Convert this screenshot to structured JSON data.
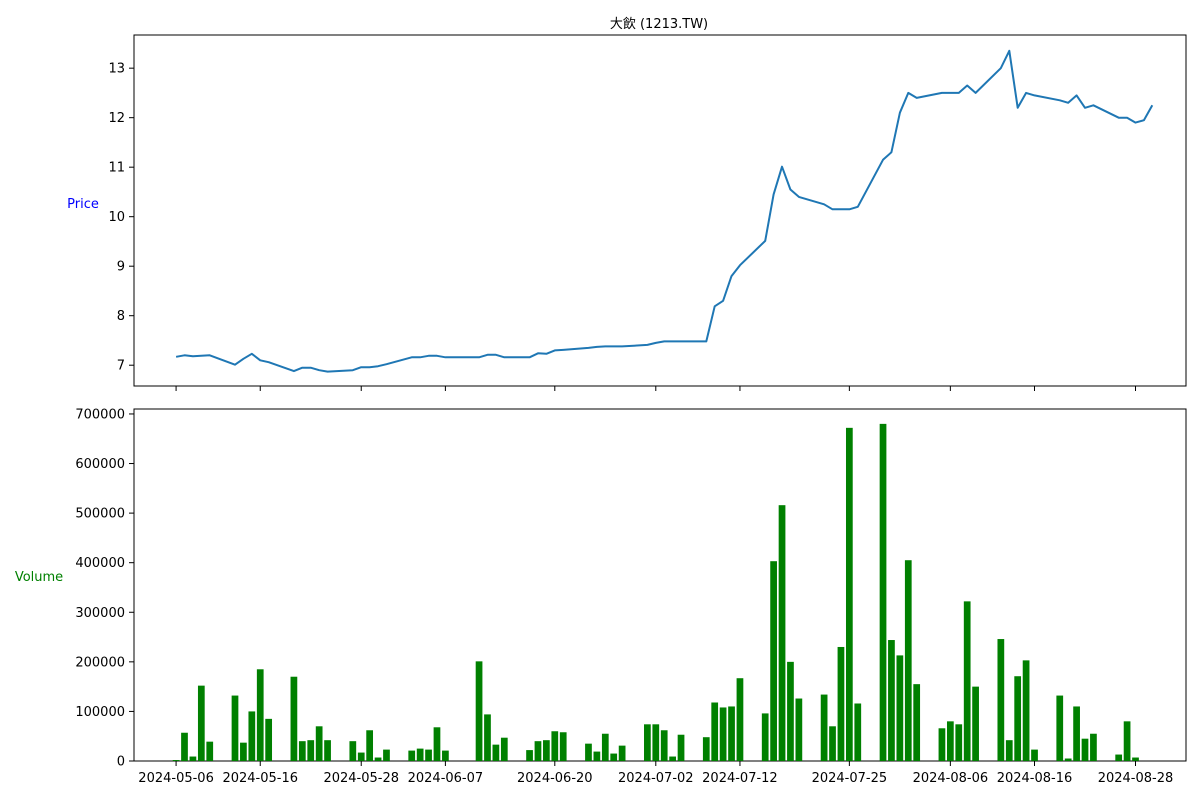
{
  "figure": {
    "title": "大飲 (1213.TW)"
  },
  "chart_data": [
    {
      "type": "line",
      "title": "大飲 (1213.TW)",
      "xlabel": "",
      "ylabel": "Price",
      "ylabel_color": "#0000ff",
      "line_color": "#1f77b4",
      "ylim": [
        6.58,
        13.67
      ],
      "yticks": [
        7,
        8,
        9,
        10,
        11,
        12,
        13
      ],
      "xlim": [
        "2024-05-01",
        "2024-09-03"
      ],
      "grid": false,
      "x": [
        "2024-05-06",
        "2024-05-07",
        "2024-05-08",
        "2024-05-09",
        "2024-05-10",
        "2024-05-13",
        "2024-05-14",
        "2024-05-15",
        "2024-05-16",
        "2024-05-17",
        "2024-05-20",
        "2024-05-21",
        "2024-05-22",
        "2024-05-23",
        "2024-05-24",
        "2024-05-27",
        "2024-05-28",
        "2024-05-29",
        "2024-05-30",
        "2024-05-31",
        "2024-06-03",
        "2024-06-04",
        "2024-06-05",
        "2024-06-06",
        "2024-06-07",
        "2024-06-11",
        "2024-06-12",
        "2024-06-13",
        "2024-06-14",
        "2024-06-17",
        "2024-06-18",
        "2024-06-19",
        "2024-06-20",
        "2024-06-21",
        "2024-06-24",
        "2024-06-25",
        "2024-06-26",
        "2024-06-27",
        "2024-06-28",
        "2024-07-01",
        "2024-07-02",
        "2024-07-03",
        "2024-07-04",
        "2024-07-05",
        "2024-07-08",
        "2024-07-09",
        "2024-07-10",
        "2024-07-11",
        "2024-07-12",
        "2024-07-15",
        "2024-07-16",
        "2024-07-17",
        "2024-07-18",
        "2024-07-19",
        "2024-07-22",
        "2024-07-23",
        "2024-07-24",
        "2024-07-25",
        "2024-07-26",
        "2024-07-29",
        "2024-07-30",
        "2024-07-31",
        "2024-08-01",
        "2024-08-02",
        "2024-08-05",
        "2024-08-06",
        "2024-08-07",
        "2024-08-08",
        "2024-08-09",
        "2024-08-12",
        "2024-08-13",
        "2024-08-14",
        "2024-08-15",
        "2024-08-16",
        "2024-08-19",
        "2024-08-20",
        "2024-08-21",
        "2024-08-22",
        "2024-08-23",
        "2024-08-26",
        "2024-08-27",
        "2024-08-28",
        "2024-08-29",
        "2024-08-30"
      ],
      "values": [
        7.17,
        7.2,
        7.18,
        7.19,
        7.2,
        7.01,
        7.13,
        7.23,
        7.1,
        7.06,
        6.88,
        6.95,
        6.95,
        6.9,
        6.87,
        6.9,
        6.96,
        6.96,
        6.98,
        7.02,
        7.16,
        7.16,
        7.19,
        7.19,
        7.16,
        7.16,
        7.21,
        7.21,
        7.16,
        7.16,
        7.24,
        7.23,
        7.3,
        7.31,
        7.35,
        7.37,
        7.38,
        7.38,
        7.38,
        7.41,
        7.45,
        7.48,
        7.48,
        7.48,
        7.48,
        8.19,
        8.3,
        8.8,
        9.02,
        9.51,
        10.45,
        11.01,
        10.55,
        10.4,
        10.25,
        10.15,
        10.15,
        10.15,
        10.2,
        11.15,
        11.3,
        12.1,
        12.5,
        12.4,
        12.5,
        12.5,
        12.5,
        12.65,
        12.5,
        13.0,
        13.35,
        12.2,
        12.5,
        12.45,
        12.35,
        12.3,
        12.45,
        12.2,
        12.25,
        12.0,
        12.0,
        11.9,
        11.95,
        12.25
      ]
    },
    {
      "type": "bar",
      "xlabel": "",
      "ylabel": "Volume",
      "ylabel_color": "#008000",
      "bar_color": "#008000",
      "ylim": [
        0,
        710000
      ],
      "yticks": [
        0,
        100000,
        200000,
        300000,
        400000,
        500000,
        600000,
        700000
      ],
      "xlim": [
        "2024-05-01",
        "2024-09-03"
      ],
      "xticks": [
        "2024-05-06",
        "2024-05-16",
        "2024-05-28",
        "2024-06-07",
        "2024-06-20",
        "2024-07-02",
        "2024-07-12",
        "2024-07-25",
        "2024-08-06",
        "2024-08-16",
        "2024-08-28"
      ],
      "grid": false,
      "x": [
        "2024-05-06",
        "2024-05-07",
        "2024-05-08",
        "2024-05-09",
        "2024-05-10",
        "2024-05-13",
        "2024-05-14",
        "2024-05-15",
        "2024-05-16",
        "2024-05-17",
        "2024-05-20",
        "2024-05-21",
        "2024-05-22",
        "2024-05-23",
        "2024-05-24",
        "2024-05-27",
        "2024-05-28",
        "2024-05-29",
        "2024-05-30",
        "2024-05-31",
        "2024-06-03",
        "2024-06-04",
        "2024-06-05",
        "2024-06-06",
        "2024-06-07",
        "2024-06-11",
        "2024-06-12",
        "2024-06-13",
        "2024-06-14",
        "2024-06-17",
        "2024-06-18",
        "2024-06-19",
        "2024-06-20",
        "2024-06-21",
        "2024-06-24",
        "2024-06-25",
        "2024-06-26",
        "2024-06-27",
        "2024-06-28",
        "2024-07-01",
        "2024-07-02",
        "2024-07-03",
        "2024-07-04",
        "2024-07-05",
        "2024-07-08",
        "2024-07-09",
        "2024-07-10",
        "2024-07-11",
        "2024-07-12",
        "2024-07-15",
        "2024-07-16",
        "2024-07-17",
        "2024-07-18",
        "2024-07-19",
        "2024-07-22",
        "2024-07-23",
        "2024-07-24",
        "2024-07-25",
        "2024-07-26",
        "2024-07-29",
        "2024-07-30",
        "2024-07-31",
        "2024-08-01",
        "2024-08-02",
        "2024-08-05",
        "2024-08-06",
        "2024-08-07",
        "2024-08-08",
        "2024-08-09",
        "2024-08-12",
        "2024-08-13",
        "2024-08-14",
        "2024-08-15",
        "2024-08-16",
        "2024-08-19",
        "2024-08-20",
        "2024-08-21",
        "2024-08-22",
        "2024-08-23",
        "2024-08-26",
        "2024-08-27",
        "2024-08-28",
        "2024-08-29",
        "2024-08-30"
      ],
      "values": [
        2000,
        57000,
        9000,
        152000,
        39000,
        132000,
        37000,
        100000,
        185000,
        85000,
        170000,
        40000,
        42000,
        70000,
        42000,
        40000,
        17000,
        62000,
        7000,
        23000,
        21000,
        25000,
        23000,
        68000,
        21000,
        201000,
        94000,
        33000,
        47000,
        22000,
        40000,
        42000,
        60000,
        58000,
        35000,
        19000,
        55000,
        15000,
        31000,
        74000,
        74000,
        62000,
        9000,
        53000,
        48000,
        118000,
        108000,
        110000,
        167000,
        96000,
        403000,
        516000,
        200000,
        126000,
        134000,
        70000,
        230000,
        672000,
        116000,
        680000,
        244000,
        213000,
        405000,
        155000,
        66000,
        80000,
        74000,
        322000,
        150000,
        246000,
        42000,
        171000,
        203000,
        23000,
        132000,
        5000,
        110000,
        45000,
        55000,
        13000,
        80000,
        7000,
        0,
        0
      ]
    }
  ]
}
